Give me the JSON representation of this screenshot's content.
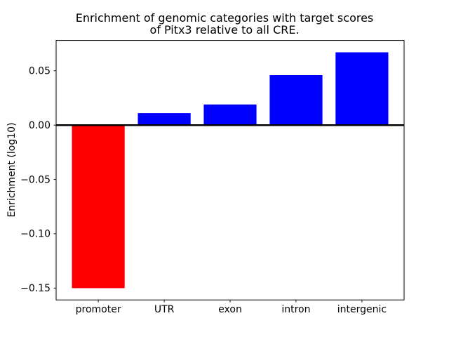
{
  "figure": {
    "background": "#ffffff",
    "frame_color": "#000000"
  },
  "chart_data": {
    "type": "bar",
    "title": "Enrichment of genomic categories with target scores\nof Pitx3 relative to all CRE.",
    "xlabel": "",
    "ylabel": "Enrichment (log10)",
    "categories": [
      "promoter",
      "UTR",
      "exon",
      "intron",
      "intergenic"
    ],
    "values": [
      -0.15,
      0.011,
      0.019,
      0.046,
      0.067
    ],
    "bar_colors": [
      "#ff0000",
      "#0000ff",
      "#0000ff",
      "#0000ff",
      "#0000ff"
    ],
    "bar_width": 0.8,
    "xlim": [
      -0.64,
      4.64
    ],
    "ylim": [
      -0.1609,
      0.0779
    ],
    "yticks": [
      -0.15,
      -0.1,
      -0.05,
      0.0,
      0.05
    ],
    "ytick_labels": [
      "−0.15",
      "−0.10",
      "−0.05",
      "0.00",
      "0.05"
    ],
    "grid": false,
    "legend": null,
    "zero_line": true,
    "zero_line_color": "#000000"
  }
}
